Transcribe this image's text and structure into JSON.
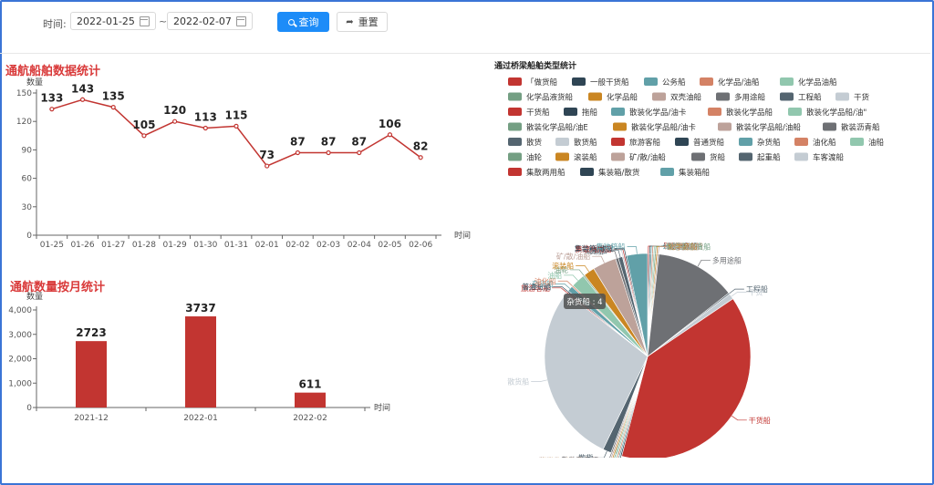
{
  "filter": {
    "time_label": "时间:",
    "start_date": "2022-01-25",
    "end_date": "2022-02-07",
    "separator": "~",
    "query_label": "查询",
    "reset_label": "重置"
  },
  "line_chart": {
    "title": "通航船舶数据统计",
    "ylabel": "数量",
    "xlabel": "时间",
    "color": "#c23531",
    "chart_data": {
      "type": "line",
      "categories": [
        "01-25",
        "01-26",
        "01-27",
        "01-28",
        "01-29",
        "01-30",
        "01-31",
        "02-01",
        "02-02",
        "02-03",
        "02-04",
        "02-05",
        "02-06"
      ],
      "values": [
        133,
        143,
        135,
        105,
        120,
        113,
        115,
        73,
        87,
        87,
        87,
        106,
        82
      ],
      "ylim": [
        0,
        150
      ],
      "yticks": [
        0,
        30,
        60,
        90,
        120,
        150
      ]
    }
  },
  "bar_chart": {
    "title": "通航数量按月统计",
    "ylabel": "数量",
    "xlabel": "时间",
    "color": "#c23531",
    "chart_data": {
      "type": "bar",
      "categories": [
        "2021-12",
        "2022-01",
        "2022-02"
      ],
      "values": [
        2723,
        3737,
        611
      ],
      "value_labels": [
        "2723",
        "3737",
        "611"
      ],
      "ylim": [
        0,
        4000
      ],
      "yticks": [
        "0",
        "1,000",
        "2,000",
        "3,000",
        "4,000"
      ]
    }
  },
  "pie_chart": {
    "title": "通过桥梁船舶类型统计",
    "tooltip": "杂货船 : 4",
    "chart_data": {
      "type": "pie",
      "legend": [
        {
          "name": "「做货船",
          "color": "#c23531"
        },
        {
          "name": "一般干货船",
          "color": "#2f4554"
        },
        {
          "name": "公务船",
          "color": "#61a0a8"
        },
        {
          "name": "化学品/油船",
          "color": "#d48265"
        },
        {
          "name": "化学品油船",
          "color": "#91c7ae"
        },
        {
          "name": "化学品液货船",
          "color": "#749f83"
        },
        {
          "name": "化学品船",
          "color": "#ca8622"
        },
        {
          "name": "双壳油船",
          "color": "#bda29a"
        },
        {
          "name": "多用途船",
          "color": "#6e7074"
        },
        {
          "name": "工程船",
          "color": "#546570"
        },
        {
          "name": "干货",
          "color": "#c4ccd3"
        },
        {
          "name": "干货船",
          "color": "#c23531"
        },
        {
          "name": "拖船",
          "color": "#2f4554"
        },
        {
          "name": "散装化学品/油卡",
          "color": "#61a0a8"
        },
        {
          "name": "散装化学品船",
          "color": "#d48265"
        },
        {
          "name": "散装化学品船/油\"",
          "color": "#91c7ae"
        },
        {
          "name": "散装化学品船/油E",
          "color": "#749f83"
        },
        {
          "name": "散装化学品船/油卡",
          "color": "#ca8622"
        },
        {
          "name": "散装化学品船/油船",
          "color": "#bda29a"
        },
        {
          "name": "散装沥青船",
          "color": "#6e7074"
        },
        {
          "name": "散货",
          "color": "#546570"
        },
        {
          "name": "散货船",
          "color": "#c4ccd3"
        },
        {
          "name": "旅游客船",
          "color": "#c23531"
        },
        {
          "name": "普通货船",
          "color": "#2f4554"
        },
        {
          "name": "杂货船",
          "color": "#61a0a8"
        },
        {
          "name": "油化船",
          "color": "#d48265"
        },
        {
          "name": "油船",
          "color": "#91c7ae"
        },
        {
          "name": "油轮",
          "color": "#749f83"
        },
        {
          "name": "滚装船",
          "color": "#ca8622"
        },
        {
          "name": "矿/散/油船",
          "color": "#bda29a"
        },
        {
          "name": "货船",
          "color": "#6e7074"
        },
        {
          "name": "起重船",
          "color": "#546570"
        },
        {
          "name": "车客渡船",
          "color": "#c4ccd3"
        },
        {
          "name": "集散两用船",
          "color": "#c23531"
        },
        {
          "name": "集装箱/散货",
          "color": "#2f4554"
        },
        {
          "name": "集装箱船",
          "color": "#61a0a8"
        }
      ],
      "slices": [
        {
          "name": "「做货船",
          "value": 1
        },
        {
          "name": "一般干货船",
          "value": 1
        },
        {
          "name": "公务船",
          "value": 1
        },
        {
          "name": "化学品/油船",
          "value": 1
        },
        {
          "name": "化学品油船",
          "value": 1
        },
        {
          "name": "化学品液货船",
          "value": 1
        },
        {
          "name": "化学品船",
          "value": 1
        },
        {
          "name": "双壳油船",
          "value": 1
        },
        {
          "name": "多用途船",
          "value": 58
        },
        {
          "name": "工程船",
          "value": 1
        },
        {
          "name": "干货",
          "value": 4
        },
        {
          "name": "干货船",
          "value": 176
        },
        {
          "name": "拖船",
          "value": 1
        },
        {
          "name": "散装化学品/油卡",
          "value": 1
        },
        {
          "name": "散装化学品船",
          "value": 1
        },
        {
          "name": "散装化学品船/油\"",
          "value": 1
        },
        {
          "name": "散装化学品船/油E",
          "value": 1
        },
        {
          "name": "散装化学品船/油卡",
          "value": 1
        },
        {
          "name": "散装化学品船/油船",
          "value": 1
        },
        {
          "name": "散装沥青船",
          "value": 1
        },
        {
          "name": "散货",
          "value": 6
        },
        {
          "name": "散货船",
          "value": 130
        },
        {
          "name": "旅游客船",
          "value": 1
        },
        {
          "name": "普通货船",
          "value": 1
        },
        {
          "name": "杂货船",
          "value": 4
        },
        {
          "name": "油化船",
          "value": 1
        },
        {
          "name": "油船",
          "value": 10
        },
        {
          "name": "油轮",
          "value": 1
        },
        {
          "name": "滚装船",
          "value": 8
        },
        {
          "name": "矿/散/油船",
          "value": 17
        },
        {
          "name": "货船",
          "value": 2
        },
        {
          "name": "起重船",
          "value": 3
        },
        {
          "name": "车客渡船",
          "value": 1
        },
        {
          "name": "集散两用船",
          "value": 1
        },
        {
          "name": "集装箱/散货",
          "value": 1
        },
        {
          "name": "集装箱船",
          "value": 15
        }
      ]
    }
  }
}
